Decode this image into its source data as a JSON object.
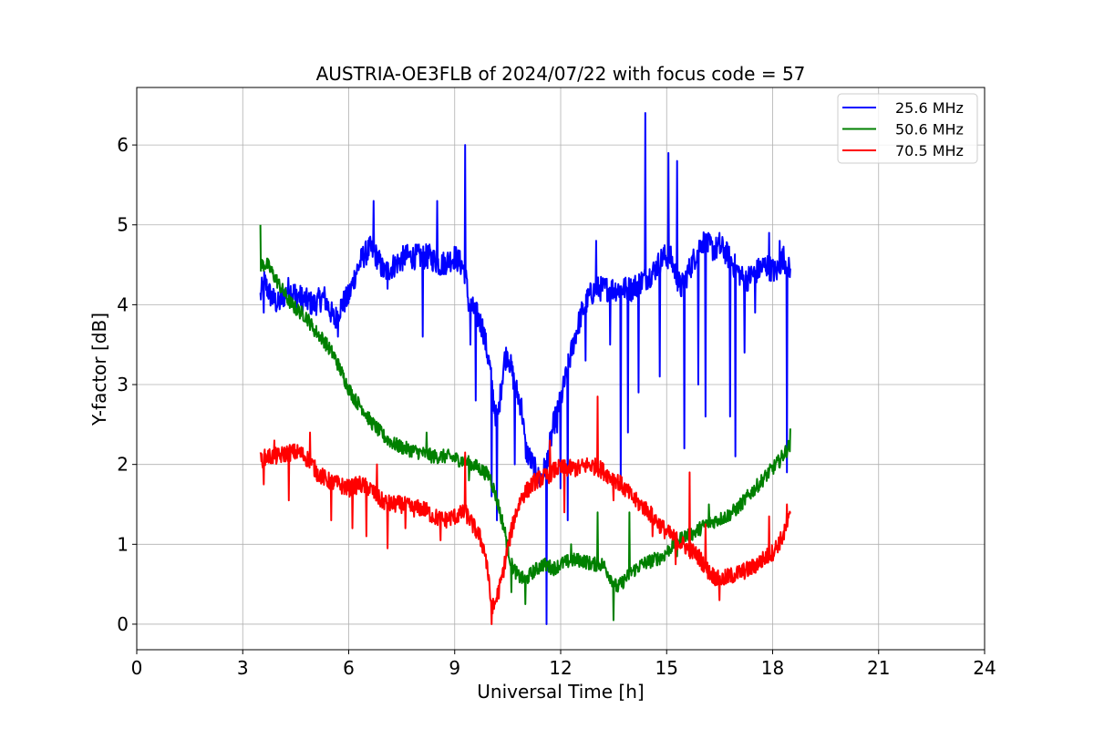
{
  "chart_data": {
    "type": "line",
    "title": "AUSTRIA-OE3FLB of 2024/07/22 with focus code = 57",
    "xlabel": "Universal Time [h]",
    "ylabel": "Y-factor [dB]",
    "xlim": [
      0,
      24
    ],
    "ylim": [
      -0.32,
      6.72
    ],
    "xticks": [
      0,
      3,
      6,
      9,
      12,
      15,
      18,
      21,
      24
    ],
    "yticks": [
      0,
      1,
      2,
      3,
      4,
      5,
      6
    ],
    "grid": true,
    "legend_position": "top-right",
    "series": [
      {
        "name": "25.6 MHz",
        "color": "#0000ff",
        "points": [
          [
            3.5,
            4.1
          ],
          [
            3.6,
            4.3
          ],
          [
            3.8,
            4.1
          ],
          [
            4.0,
            4.0
          ],
          [
            4.3,
            4.2
          ],
          [
            4.6,
            4.1
          ],
          [
            5.0,
            4.0
          ],
          [
            5.3,
            4.1
          ],
          [
            5.6,
            3.8
          ],
          [
            5.8,
            4.0
          ],
          [
            6.0,
            4.1
          ],
          [
            6.2,
            4.4
          ],
          [
            6.4,
            4.6
          ],
          [
            6.6,
            4.7
          ],
          [
            6.8,
            4.6
          ],
          [
            7.0,
            4.4
          ],
          [
            7.3,
            4.5
          ],
          [
            7.6,
            4.6
          ],
          [
            8.0,
            4.6
          ],
          [
            8.3,
            4.6
          ],
          [
            8.6,
            4.5
          ],
          [
            9.0,
            4.6
          ],
          [
            9.2,
            4.5
          ],
          [
            9.3,
            4.4
          ],
          [
            9.4,
            4.0
          ],
          [
            9.6,
            3.9
          ],
          [
            9.8,
            3.7
          ],
          [
            10.0,
            3.2
          ],
          [
            10.1,
            2.8
          ],
          [
            10.2,
            2.5
          ],
          [
            10.4,
            3.3
          ],
          [
            10.5,
            3.4
          ],
          [
            10.7,
            3.0
          ],
          [
            10.9,
            2.7
          ],
          [
            11.0,
            2.2
          ],
          [
            11.2,
            2.0
          ],
          [
            11.4,
            1.8
          ],
          [
            11.6,
            2.0
          ],
          [
            11.8,
            2.5
          ],
          [
            12.0,
            2.8
          ],
          [
            12.2,
            3.2
          ],
          [
            12.4,
            3.6
          ],
          [
            12.6,
            3.9
          ],
          [
            12.8,
            4.1
          ],
          [
            13.0,
            4.2
          ],
          [
            13.2,
            4.2
          ],
          [
            13.5,
            4.2
          ],
          [
            13.8,
            4.2
          ],
          [
            14.0,
            4.2
          ],
          [
            14.3,
            4.3
          ],
          [
            14.6,
            4.4
          ],
          [
            14.9,
            4.6
          ],
          [
            15.1,
            4.6
          ],
          [
            15.4,
            4.2
          ],
          [
            15.7,
            4.5
          ],
          [
            16.0,
            4.8
          ],
          [
            16.3,
            4.7
          ],
          [
            16.6,
            4.7
          ],
          [
            16.9,
            4.5
          ],
          [
            17.2,
            4.3
          ],
          [
            17.5,
            4.4
          ],
          [
            17.8,
            4.5
          ],
          [
            18.1,
            4.4
          ],
          [
            18.3,
            4.6
          ],
          [
            18.5,
            4.4
          ]
        ],
        "spikes": [
          [
            3.6,
            3.9
          ],
          [
            4.5,
            3.9
          ],
          [
            5.7,
            3.6
          ],
          [
            6.7,
            5.3
          ],
          [
            7.1,
            4.2
          ],
          [
            8.1,
            3.6
          ],
          [
            8.5,
            5.3
          ],
          [
            9.3,
            6.0
          ],
          [
            9.45,
            3.5
          ],
          [
            9.6,
            2.8
          ],
          [
            10.05,
            1.6
          ],
          [
            10.2,
            1.3
          ],
          [
            10.5,
            3.4
          ],
          [
            10.7,
            2.0
          ],
          [
            11.0,
            2.3
          ],
          [
            11.6,
            0.0
          ],
          [
            11.9,
            2.4
          ],
          [
            12.0,
            1.7
          ],
          [
            12.2,
            1.3
          ],
          [
            12.7,
            3.3
          ],
          [
            13.0,
            4.8
          ],
          [
            13.4,
            3.5
          ],
          [
            13.7,
            1.7
          ],
          [
            13.9,
            2.4
          ],
          [
            14.2,
            2.9
          ],
          [
            14.4,
            6.4
          ],
          [
            14.8,
            3.1
          ],
          [
            15.05,
            5.9
          ],
          [
            15.3,
            5.8
          ],
          [
            15.5,
            2.2
          ],
          [
            15.9,
            3.0
          ],
          [
            16.1,
            2.6
          ],
          [
            16.5,
            4.9
          ],
          [
            16.8,
            2.6
          ],
          [
            16.95,
            2.1
          ],
          [
            17.2,
            3.4
          ],
          [
            17.5,
            3.9
          ],
          [
            17.9,
            4.9
          ],
          [
            18.2,
            4.8
          ],
          [
            18.4,
            1.9
          ]
        ]
      },
      {
        "name": "50.6 MHz",
        "color": "#008000",
        "points": [
          [
            3.5,
            4.5
          ],
          [
            3.7,
            4.5
          ],
          [
            3.9,
            4.35
          ],
          [
            4.1,
            4.2
          ],
          [
            4.3,
            4.05
          ],
          [
            4.5,
            3.95
          ],
          [
            4.8,
            3.85
          ],
          [
            5.0,
            3.7
          ],
          [
            5.3,
            3.55
          ],
          [
            5.6,
            3.35
          ],
          [
            5.8,
            3.15
          ],
          [
            6.0,
            2.95
          ],
          [
            6.2,
            2.8
          ],
          [
            6.4,
            2.7
          ],
          [
            6.6,
            2.55
          ],
          [
            6.8,
            2.45
          ],
          [
            7.0,
            2.35
          ],
          [
            7.3,
            2.25
          ],
          [
            7.6,
            2.2
          ],
          [
            8.0,
            2.15
          ],
          [
            8.4,
            2.1
          ],
          [
            8.8,
            2.1
          ],
          [
            9.2,
            2.05
          ],
          [
            9.5,
            2.0
          ],
          [
            9.7,
            1.95
          ],
          [
            10.0,
            1.85
          ],
          [
            10.2,
            1.55
          ],
          [
            10.4,
            1.2
          ],
          [
            10.6,
            0.75
          ],
          [
            10.8,
            0.6
          ],
          [
            11.0,
            0.55
          ],
          [
            11.2,
            0.65
          ],
          [
            11.5,
            0.75
          ],
          [
            11.8,
            0.7
          ],
          [
            12.0,
            0.75
          ],
          [
            12.3,
            0.8
          ],
          [
            12.6,
            0.8
          ],
          [
            12.9,
            0.75
          ],
          [
            13.2,
            0.75
          ],
          [
            13.4,
            0.6
          ],
          [
            13.6,
            0.45
          ],
          [
            13.8,
            0.55
          ],
          [
            14.0,
            0.65
          ],
          [
            14.3,
            0.75
          ],
          [
            14.6,
            0.8
          ],
          [
            14.9,
            0.85
          ],
          [
            15.2,
            1.0
          ],
          [
            15.5,
            1.1
          ],
          [
            15.8,
            1.15
          ],
          [
            16.1,
            1.25
          ],
          [
            16.4,
            1.3
          ],
          [
            16.7,
            1.35
          ],
          [
            17.0,
            1.45
          ],
          [
            17.3,
            1.6
          ],
          [
            17.6,
            1.75
          ],
          [
            17.9,
            1.9
          ],
          [
            18.2,
            2.05
          ],
          [
            18.5,
            2.25
          ]
        ],
        "spikes": [
          [
            3.5,
            5.0
          ],
          [
            5.0,
            3.7
          ],
          [
            8.2,
            2.4
          ],
          [
            9.4,
            1.8
          ],
          [
            10.3,
            1.3
          ],
          [
            10.6,
            0.4
          ],
          [
            11.0,
            0.25
          ],
          [
            12.3,
            1.0
          ],
          [
            13.05,
            1.4
          ],
          [
            13.5,
            0.05
          ],
          [
            13.95,
            1.4
          ],
          [
            15.3,
            0.85
          ],
          [
            16.2,
            1.5
          ],
          [
            17.6,
            1.7
          ],
          [
            18.5,
            2.45
          ]
        ]
      },
      {
        "name": "70.5 MHz",
        "color": "#ff0000",
        "points": [
          [
            3.5,
            2.05
          ],
          [
            3.7,
            2.1
          ],
          [
            4.0,
            2.1
          ],
          [
            4.3,
            2.15
          ],
          [
            4.6,
            2.15
          ],
          [
            4.9,
            2.05
          ],
          [
            5.1,
            1.9
          ],
          [
            5.4,
            1.8
          ],
          [
            5.7,
            1.75
          ],
          [
            6.0,
            1.7
          ],
          [
            6.3,
            1.75
          ],
          [
            6.6,
            1.7
          ],
          [
            6.9,
            1.55
          ],
          [
            7.2,
            1.5
          ],
          [
            7.5,
            1.5
          ],
          [
            7.8,
            1.45
          ],
          [
            8.1,
            1.45
          ],
          [
            8.4,
            1.35
          ],
          [
            8.7,
            1.3
          ],
          [
            9.0,
            1.35
          ],
          [
            9.3,
            1.4
          ],
          [
            9.5,
            1.25
          ],
          [
            9.7,
            1.1
          ],
          [
            9.9,
            0.85
          ],
          [
            10.0,
            0.35
          ],
          [
            10.1,
            0.2
          ],
          [
            10.3,
            0.5
          ],
          [
            10.5,
            0.95
          ],
          [
            10.7,
            1.35
          ],
          [
            10.9,
            1.6
          ],
          [
            11.1,
            1.7
          ],
          [
            11.3,
            1.8
          ],
          [
            11.6,
            1.85
          ],
          [
            11.9,
            1.95
          ],
          [
            12.2,
            1.95
          ],
          [
            12.5,
            1.95
          ],
          [
            12.8,
            2.0
          ],
          [
            13.1,
            1.95
          ],
          [
            13.4,
            1.85
          ],
          [
            13.6,
            1.8
          ],
          [
            13.8,
            1.7
          ],
          [
            14.1,
            1.55
          ],
          [
            14.4,
            1.45
          ],
          [
            14.7,
            1.3
          ],
          [
            15.0,
            1.15
          ],
          [
            15.3,
            1.05
          ],
          [
            15.6,
            0.95
          ],
          [
            15.9,
            0.85
          ],
          [
            16.2,
            0.65
          ],
          [
            16.5,
            0.55
          ],
          [
            16.8,
            0.6
          ],
          [
            17.1,
            0.65
          ],
          [
            17.4,
            0.7
          ],
          [
            17.7,
            0.8
          ],
          [
            18.0,
            0.9
          ],
          [
            18.3,
            1.1
          ],
          [
            18.5,
            1.35
          ]
        ],
        "spikes": [
          [
            3.6,
            1.75
          ],
          [
            3.9,
            2.3
          ],
          [
            4.3,
            1.55
          ],
          [
            4.9,
            2.4
          ],
          [
            5.5,
            1.3
          ],
          [
            6.1,
            1.2
          ],
          [
            6.5,
            1.1
          ],
          [
            6.8,
            2.0
          ],
          [
            7.1,
            0.95
          ],
          [
            7.6,
            1.2
          ],
          [
            8.6,
            1.05
          ],
          [
            9.3,
            2.15
          ],
          [
            9.9,
            0.7
          ],
          [
            10.05,
            0.0
          ],
          [
            11.7,
            2.3
          ],
          [
            12.1,
            1.4
          ],
          [
            13.05,
            2.85
          ],
          [
            13.5,
            1.55
          ],
          [
            14.6,
            1.1
          ],
          [
            15.25,
            0.75
          ],
          [
            15.65,
            1.9
          ],
          [
            16.1,
            1.25
          ],
          [
            16.5,
            0.3
          ],
          [
            17.9,
            1.35
          ],
          [
            18.4,
            1.5
          ]
        ]
      }
    ]
  }
}
